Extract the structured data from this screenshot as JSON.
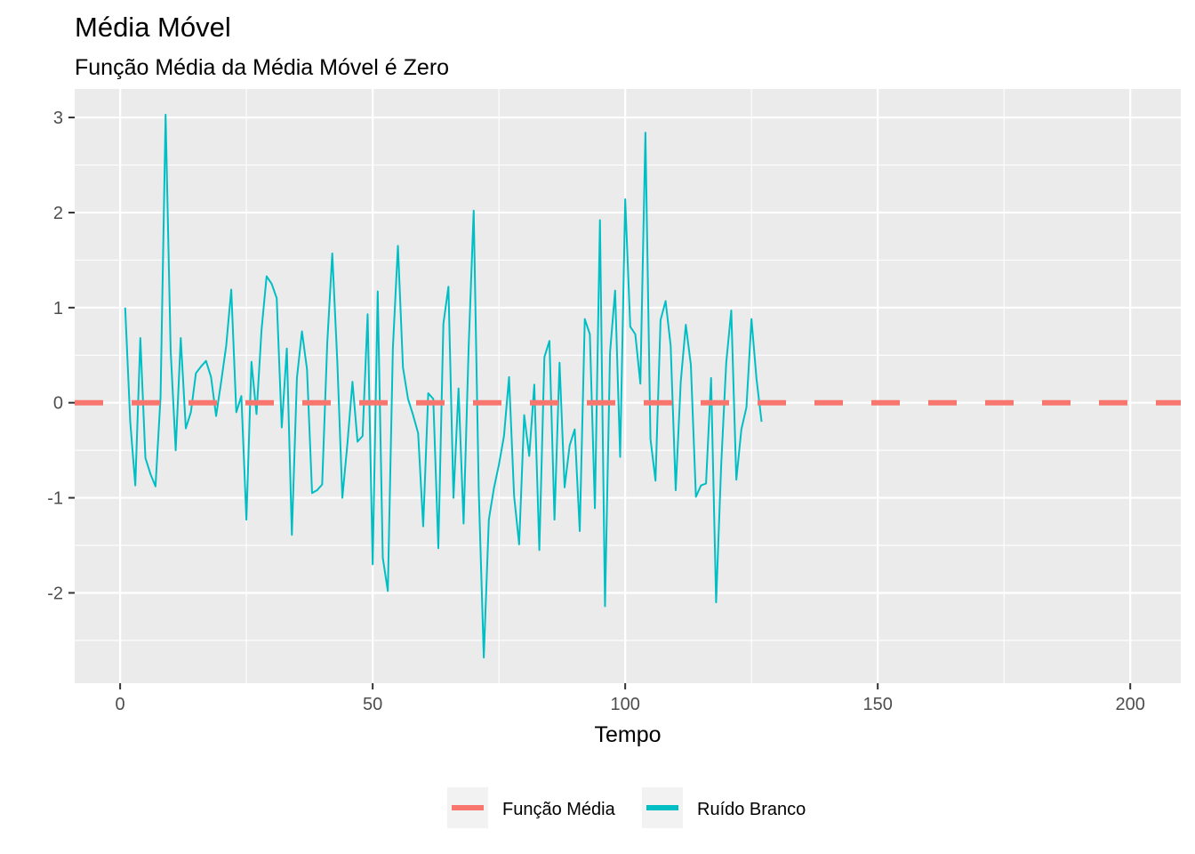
{
  "chart_data": {
    "type": "line",
    "title": "Média Móvel",
    "subtitle": "Função Média da Média Móvel é Zero",
    "xlabel": "Tempo",
    "ylabel": "",
    "xlim": [
      -9,
      210
    ],
    "ylim": [
      -2.95,
      3.3
    ],
    "x_ticks": [
      0,
      50,
      100,
      150,
      200
    ],
    "x_tick_labels": [
      "0",
      "50",
      "100",
      "150",
      "200"
    ],
    "y_ticks": [
      3,
      2,
      1,
      0,
      -1,
      -2
    ],
    "y_tick_labels": [
      "3",
      "2",
      "1",
      "0",
      "-1",
      "-2"
    ],
    "grid": true,
    "legend_position": "bottom",
    "series": [
      {
        "name": "Função Média",
        "color": "#F8766D",
        "style": "dashed",
        "x": [
          -9,
          210
        ],
        "values": [
          0,
          0
        ]
      },
      {
        "name": "Ruído Branco",
        "color": "#00BFC4",
        "style": "solid",
        "x_start": 1,
        "x_step": 1,
        "values": [
          1.0,
          -0.2,
          -0.87,
          0.68,
          -0.58,
          -0.75,
          -0.88,
          0.06,
          3.03,
          0.55,
          -0.5,
          0.68,
          -0.27,
          -0.1,
          0.31,
          0.38,
          0.44,
          0.27,
          -0.14,
          0.22,
          0.6,
          1.19,
          -0.1,
          0.07,
          -1.23,
          0.43,
          -0.12,
          0.77,
          1.33,
          1.25,
          1.1,
          -0.26,
          0.57,
          -1.39,
          0.26,
          0.75,
          0.35,
          -0.95,
          -0.92,
          -0.86,
          0.62,
          1.57,
          0.43,
          -1.0,
          -0.43,
          0.22,
          -0.41,
          -0.35,
          0.93,
          -1.7,
          1.17,
          -1.63,
          -1.98,
          0.57,
          1.65,
          0.37,
          0.04,
          -0.13,
          -0.32,
          -1.3,
          0.1,
          0.04,
          -1.53,
          0.83,
          1.22,
          -1.0,
          0.15,
          -1.27,
          0.58,
          2.02,
          -0.92,
          -2.68,
          -1.23,
          -0.9,
          -0.65,
          -0.35,
          0.27,
          -0.98,
          -1.49,
          -0.13,
          -0.56,
          0.19,
          -1.55,
          0.48,
          0.65,
          -1.23,
          0.42,
          -0.89,
          -0.45,
          -0.28,
          -1.35,
          0.88,
          0.72,
          -1.11,
          1.92,
          -2.14,
          0.53,
          1.18,
          -0.57,
          2.14,
          0.8,
          0.72,
          0.2,
          2.84,
          -0.38,
          -0.82,
          0.87,
          1.07,
          0.6,
          -0.92,
          0.22,
          0.82,
          0.4,
          -0.99,
          -0.87,
          -0.85,
          0.26,
          -2.1,
          -0.66,
          0.42,
          0.97,
          -0.81,
          -0.28,
          -0.05,
          0.88,
          0.25,
          -0.2
        ],
        "values_more": []
      }
    ]
  }
}
